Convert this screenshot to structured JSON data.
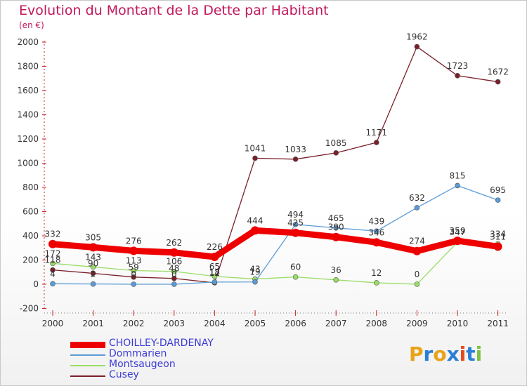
{
  "title": "Evolution du Montant de la Dette par Habitant",
  "subtitle": "(en €)",
  "logo": {
    "text": "Proxiti",
    "letters": [
      "P",
      "r",
      "o",
      "x",
      "i",
      "t",
      "i"
    ],
    "colors": [
      "#e8a317",
      "#2a7fd4",
      "#e8a317",
      "#2a7fd4",
      "#e84a1a",
      "#2a7fd4",
      "#7dc242"
    ]
  },
  "chart_data": {
    "type": "line",
    "title": "Evolution du Montant de la Dette par Habitant",
    "ylabel": "(en €)",
    "xlabel": "",
    "x": [
      "2000",
      "2001",
      "2002",
      "2003",
      "2004",
      "2005",
      "2006",
      "2007",
      "2008",
      "2009",
      "2010",
      "2011"
    ],
    "ylim": [
      -200,
      2000
    ],
    "yticks": [
      "-200",
      "0",
      "200",
      "400",
      "600",
      "800",
      "1000",
      "1200",
      "1400",
      "1600",
      "1800",
      "2000"
    ],
    "grid": false,
    "legend_position": "bottom-left",
    "series": [
      {
        "name": "CHOILLEY-DARDENAY",
        "color": "#ee0000",
        "width": "thick",
        "values": [
          332,
          305,
          276,
          262,
          226,
          444,
          425,
          390,
          346,
          274,
          359,
          311
        ],
        "labels": [
          "332",
          "305",
          "276",
          "262",
          "226",
          "444",
          "425",
          "390",
          "346",
          "274",
          "359",
          "311"
        ]
      },
      {
        "name": "Dommarien",
        "color": "#5b9bd5",
        "width": "thin",
        "values": [
          4,
          2,
          0,
          0,
          18,
          19,
          494,
          465,
          439,
          632,
          815,
          695
        ],
        "labels": [
          "4",
          "2",
          "0",
          "0",
          "18",
          "19",
          "494",
          "465",
          "439",
          "632",
          "815",
          "695"
        ]
      },
      {
        "name": "Montsaugeon",
        "color": "#99dd66",
        "width": "thin",
        "values": [
          172,
          143,
          113,
          106,
          65,
          43,
          60,
          36,
          12,
          0,
          347,
          334
        ],
        "labels": [
          "172",
          "143",
          "113",
          "106",
          "65",
          "43",
          "60",
          "36",
          "12",
          "0",
          "347",
          "334"
        ]
      },
      {
        "name": "Cusey",
        "color": "#7a1f2a",
        "width": "thin",
        "values": [
          118,
          90,
          59,
          48,
          12,
          1041,
          1033,
          1085,
          1171,
          1962,
          1723,
          1672
        ],
        "labels": [
          "118",
          "90",
          "59",
          "48",
          "12",
          "1041",
          "1033",
          "1085",
          "1171",
          "1962",
          "1723",
          "1672"
        ]
      }
    ]
  }
}
